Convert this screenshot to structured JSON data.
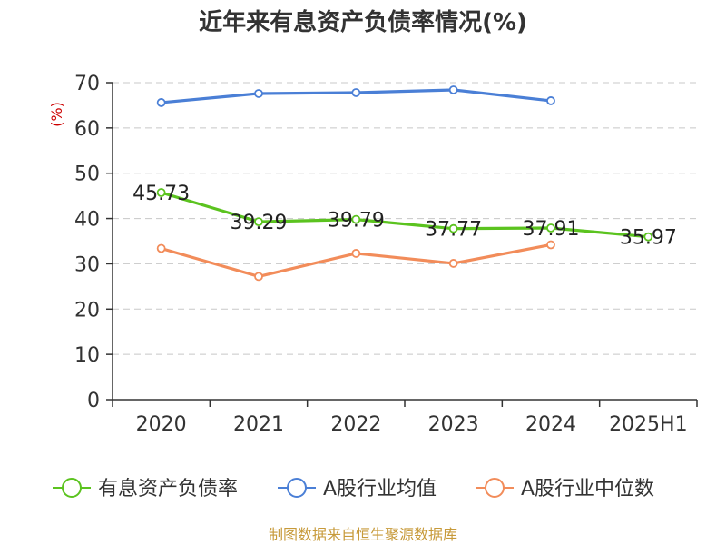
{
  "chart_data": {
    "type": "line",
    "title": "近年来有息资产负债率情况(%)",
    "y_unit": "(%)",
    "categories": [
      "2020",
      "2021",
      "2022",
      "2023",
      "2024",
      "2025H1"
    ],
    "ylim": [
      0,
      70
    ],
    "yticks": [
      0,
      10,
      20,
      30,
      40,
      50,
      60,
      70
    ],
    "grid": true,
    "legend_position": "bottom",
    "series": [
      {
        "name": "有息资产负债率",
        "color": "#5bc31f",
        "values": [
          45.73,
          39.29,
          39.79,
          37.77,
          37.91,
          35.97
        ],
        "labels": [
          "45.73",
          "39.29",
          "39.79",
          "37.77",
          "37.91",
          "35.97"
        ]
      },
      {
        "name": "A股行业均值",
        "color": "#4a7fd6",
        "values": [
          65.6,
          67.6,
          67.8,
          68.4,
          66.0,
          null
        ]
      },
      {
        "name": "A股行业中位数",
        "color": "#f28c5a",
        "values": [
          33.4,
          27.2,
          32.3,
          30.1,
          34.2,
          null
        ]
      }
    ],
    "source": "制图数据来自恒生聚源数据库"
  },
  "colors": {
    "unit_label": "#cc0000",
    "source_label": "#c79a3a"
  }
}
